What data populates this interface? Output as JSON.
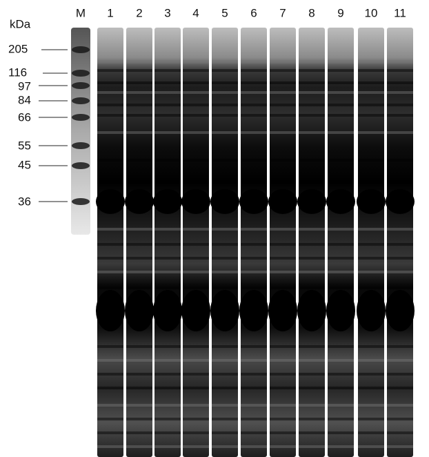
{
  "unit_label": "kDa",
  "lanes": [
    "M",
    "1",
    "2",
    "3",
    "4",
    "5",
    "6",
    "7",
    "8",
    "9",
    "10",
    "11"
  ],
  "markers": [
    "205",
    "116",
    "97",
    "84",
    "66",
    "55",
    "45",
    "36"
  ]
}
